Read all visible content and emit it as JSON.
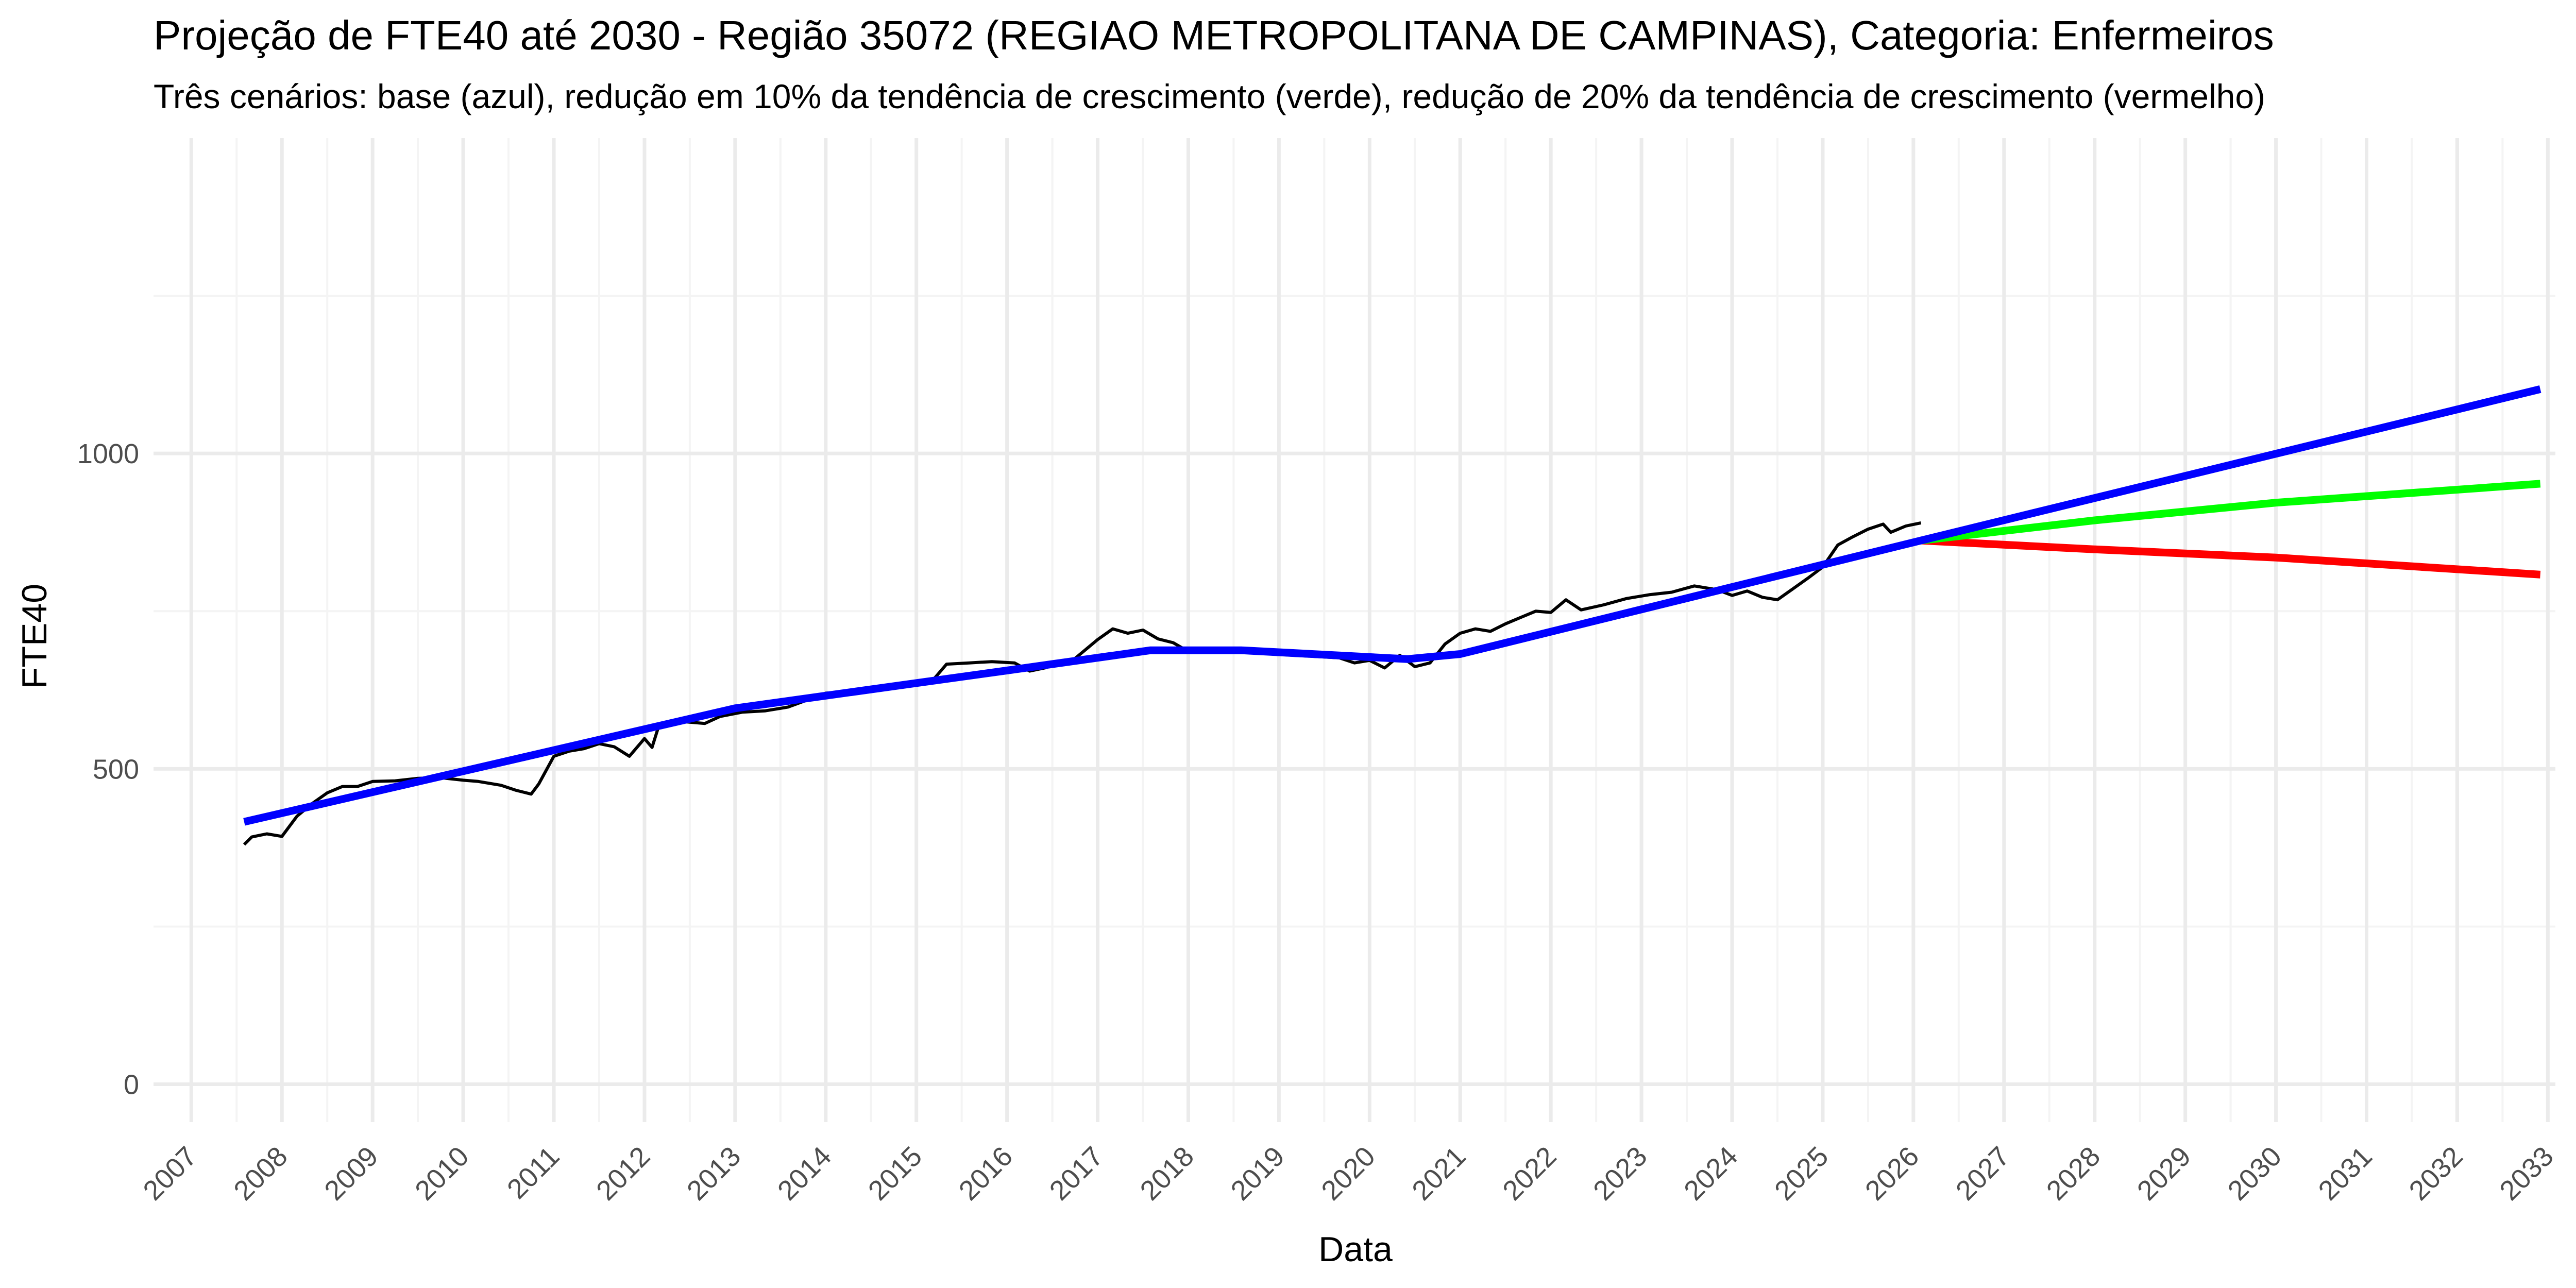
{
  "chart_data": {
    "type": "line",
    "title": "Projeção de FTE40 até 2030 - Região 35072 (REGIAO METROPOLITANA DE CAMPINAS), Categoria: Enfermeiros",
    "subtitle": "Três cenários: base (azul), redução em 10% da tendência de crescimento (verde), redução de 20% da tendência de crescimento (vermelho)",
    "xlabel": "Data",
    "ylabel": "FTE40",
    "x_range": [
      "2006-08-01",
      "2033-02-01"
    ],
    "ylim": [
      -60,
      1500
    ],
    "y_ticks": [
      0,
      500,
      1000
    ],
    "x_ticks": [
      "2007",
      "2008",
      "2009",
      "2010",
      "2011",
      "2012",
      "2013",
      "2014",
      "2015",
      "2016",
      "2017",
      "2018",
      "2019",
      "2020",
      "2021",
      "2022",
      "2023",
      "2024",
      "2025",
      "2026",
      "2027",
      "2028",
      "2029",
      "2030",
      "2031",
      "2032",
      "2033"
    ],
    "grid": true,
    "legend": "none",
    "colors": {
      "observed": "#000000",
      "base": "#0000ff",
      "reduction_10": "#00ff00",
      "reduction_20": "#ff0000",
      "grid_major": "#ebebeb",
      "grid_minor": "#f4f4f4"
    },
    "series": [
      {
        "key": "observed",
        "points": [
          [
            "2007-08-01",
            380
          ],
          [
            "2007-09-01",
            392
          ],
          [
            "2007-11-01",
            397
          ],
          [
            "2008-01-01",
            393
          ],
          [
            "2008-03-01",
            425
          ],
          [
            "2008-05-01",
            445
          ],
          [
            "2008-07-01",
            462
          ],
          [
            "2008-09-01",
            472
          ],
          [
            "2008-11-01",
            472
          ],
          [
            "2009-01-01",
            480
          ],
          [
            "2009-04-01",
            481
          ],
          [
            "2009-07-01",
            485
          ],
          [
            "2009-10-01",
            486
          ],
          [
            "2010-01-01",
            482
          ],
          [
            "2010-03-01",
            480
          ],
          [
            "2010-06-01",
            474
          ],
          [
            "2010-08-01",
            466
          ],
          [
            "2010-10-01",
            460
          ],
          [
            "2010-11-01",
            476
          ],
          [
            "2011-01-01",
            520
          ],
          [
            "2011-03-01",
            528
          ],
          [
            "2011-05-01",
            532
          ],
          [
            "2011-07-01",
            540
          ],
          [
            "2011-09-01",
            535
          ],
          [
            "2011-11-01",
            520
          ],
          [
            "2012-01-01",
            548
          ],
          [
            "2012-02-01",
            534
          ],
          [
            "2012-03-01",
            572
          ],
          [
            "2012-06-01",
            575
          ],
          [
            "2012-09-01",
            572
          ],
          [
            "2012-11-01",
            583
          ],
          [
            "2013-02-01",
            590
          ],
          [
            "2013-05-01",
            592
          ],
          [
            "2013-08-01",
            598
          ],
          [
            "2014-01-01",
            620
          ],
          [
            "2014-05-01",
            623
          ],
          [
            "2014-08-01",
            628
          ],
          [
            "2014-12-01",
            633
          ],
          [
            "2015-03-01",
            638
          ],
          [
            "2015-05-01",
            666
          ],
          [
            "2015-08-01",
            668
          ],
          [
            "2015-11-01",
            670
          ],
          [
            "2016-02-01",
            668
          ],
          [
            "2016-04-01",
            655
          ],
          [
            "2016-06-01",
            660
          ],
          [
            "2016-08-01",
            668
          ],
          [
            "2016-10-01",
            675
          ],
          [
            "2017-01-01",
            705
          ],
          [
            "2017-03-01",
            722
          ],
          [
            "2017-05-01",
            715
          ],
          [
            "2017-07-01",
            720
          ],
          [
            "2017-09-01",
            706
          ],
          [
            "2017-11-01",
            700
          ],
          [
            "2018-01-01",
            686
          ],
          [
            "2018-03-01",
            690
          ],
          [
            "2018-06-01",
            685
          ],
          [
            "2018-09-01",
            688
          ],
          [
            "2018-12-01",
            682
          ],
          [
            "2019-03-01",
            680
          ],
          [
            "2019-06-01",
            678
          ],
          [
            "2019-09-01",
            676
          ],
          [
            "2019-11-01",
            668
          ],
          [
            "2020-01-01",
            672
          ],
          [
            "2020-03-01",
            660
          ],
          [
            "2020-05-01",
            680
          ],
          [
            "2020-07-01",
            662
          ],
          [
            "2020-09-01",
            668
          ],
          [
            "2020-11-01",
            698
          ],
          [
            "2021-01-01",
            715
          ],
          [
            "2021-03-01",
            722
          ],
          [
            "2021-05-01",
            718
          ],
          [
            "2021-07-01",
            730
          ],
          [
            "2021-09-01",
            740
          ],
          [
            "2021-11-01",
            750
          ],
          [
            "2022-01-01",
            748
          ],
          [
            "2022-03-01",
            768
          ],
          [
            "2022-05-01",
            752
          ],
          [
            "2022-08-01",
            760
          ],
          [
            "2022-11-01",
            770
          ],
          [
            "2023-02-01",
            776
          ],
          [
            "2023-05-01",
            780
          ],
          [
            "2023-08-01",
            790
          ],
          [
            "2023-11-01",
            784
          ],
          [
            "2024-01-01",
            775
          ],
          [
            "2024-03-01",
            782
          ],
          [
            "2024-05-01",
            772
          ],
          [
            "2024-07-01",
            768
          ],
          [
            "2024-09-01",
            785
          ],
          [
            "2024-11-01",
            802
          ],
          [
            "2025-01-01",
            820
          ],
          [
            "2025-03-01",
            855
          ],
          [
            "2025-05-01",
            868
          ],
          [
            "2025-07-01",
            880
          ],
          [
            "2025-09-01",
            888
          ],
          [
            "2025-10-01",
            875
          ],
          [
            "2025-12-01",
            885
          ],
          [
            "2026-02-01",
            890
          ]
        ]
      },
      {
        "key": "base",
        "points": [
          [
            "2007-08-01",
            416
          ],
          [
            "2013-01-01",
            596
          ],
          [
            "2016-01-01",
            656
          ],
          [
            "2017-08-01",
            688
          ],
          [
            "2018-08-01",
            688
          ],
          [
            "2020-06-01",
            674
          ],
          [
            "2021-01-01",
            682
          ],
          [
            "2026-02-01",
            862
          ],
          [
            "2032-12-01",
            1102
          ]
        ]
      },
      {
        "key": "reduction_10",
        "points": [
          [
            "2026-02-01",
            862
          ],
          [
            "2028-01-01",
            894
          ],
          [
            "2030-01-01",
            922
          ],
          [
            "2032-12-01",
            952
          ]
        ]
      },
      {
        "key": "reduction_20",
        "points": [
          [
            "2026-02-01",
            862
          ],
          [
            "2028-01-01",
            848
          ],
          [
            "2030-01-01",
            835
          ],
          [
            "2032-12-01",
            808
          ]
        ]
      }
    ]
  }
}
